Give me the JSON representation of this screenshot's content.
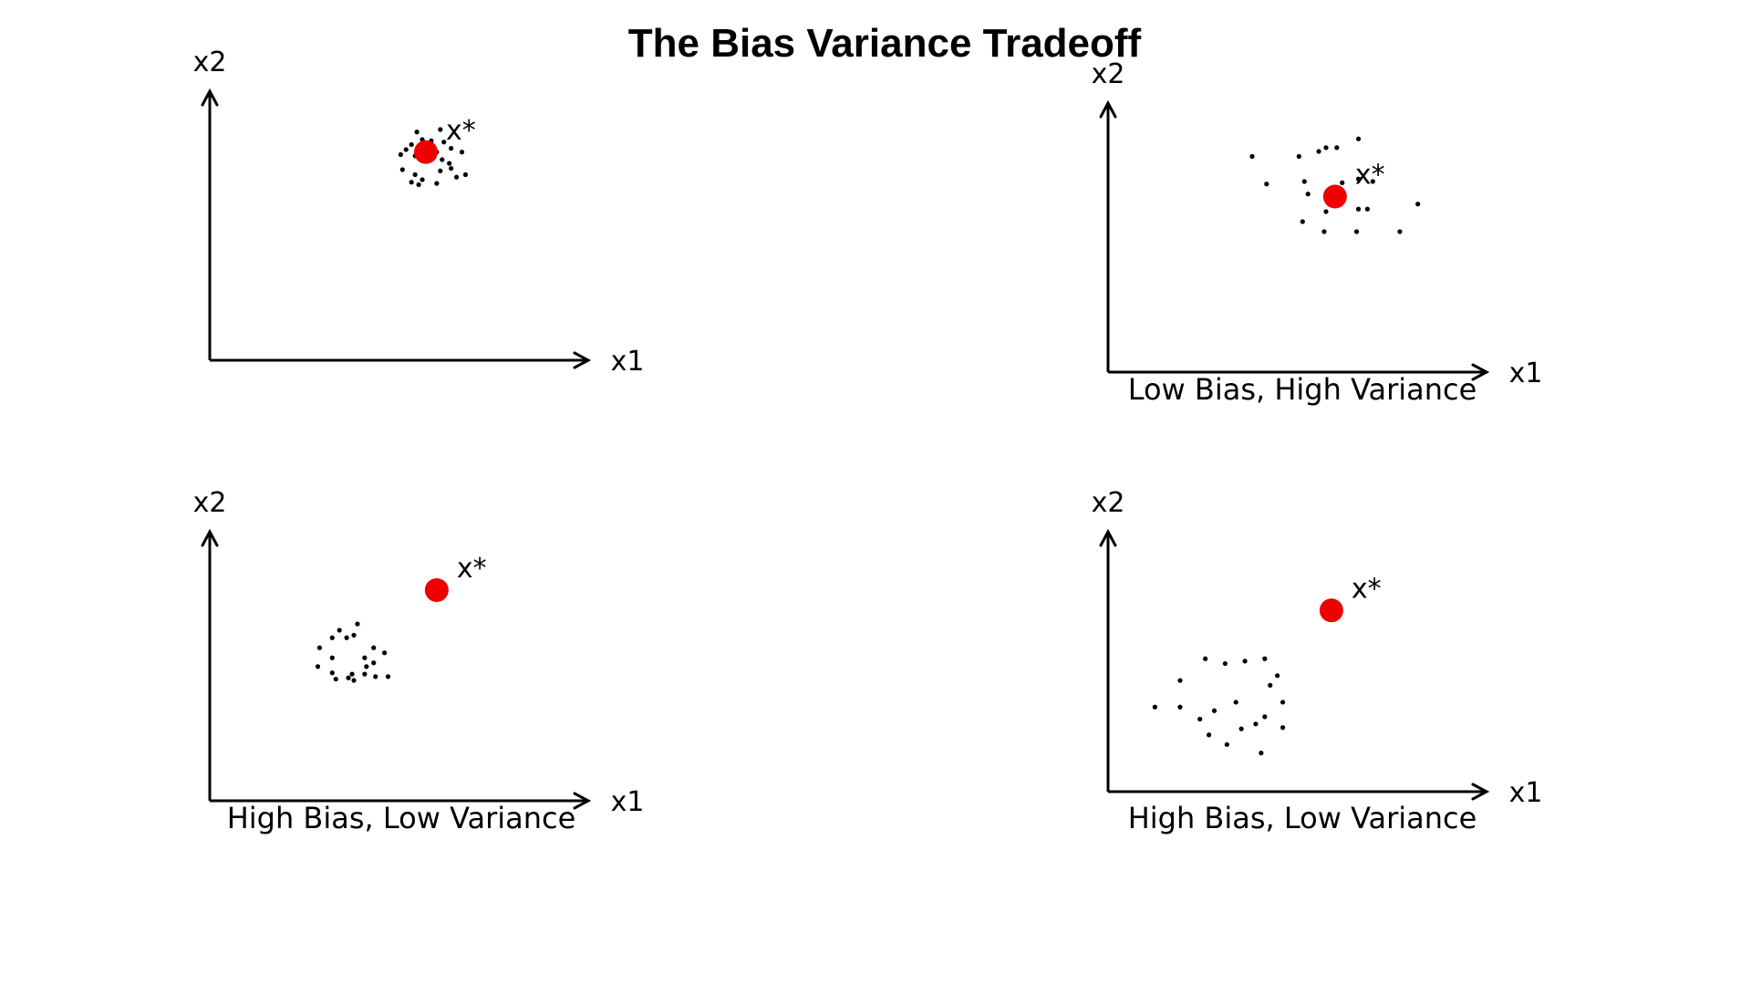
{
  "title": "The Bias Variance Tradeoff",
  "target_color": "#ee0000",
  "point_color": "#000000",
  "panels": [
    {
      "x_label": "x1",
      "y_label": "x2",
      "caption": "",
      "target_label": "x*",
      "target": [
        6.0,
        8.3
      ],
      "points": [
        [
          5.75,
          9.1
        ],
        [
          6.4,
          9.2
        ],
        [
          5.6,
          8.6
        ],
        [
          5.9,
          8.8
        ],
        [
          6.15,
          8.75
        ],
        [
          6.5,
          8.7
        ],
        [
          5.3,
          8.2
        ],
        [
          5.45,
          8.4
        ],
        [
          5.7,
          8.15
        ],
        [
          6.3,
          8.3
        ],
        [
          6.7,
          8.45
        ],
        [
          7.0,
          8.3
        ],
        [
          5.35,
          7.6
        ],
        [
          5.7,
          7.4
        ],
        [
          5.9,
          7.2
        ],
        [
          6.4,
          7.55
        ],
        [
          6.65,
          7.85
        ],
        [
          6.85,
          7.3
        ],
        [
          6.3,
          7.05
        ],
        [
          5.8,
          7.0
        ],
        [
          5.6,
          7.1
        ],
        [
          6.45,
          8.0
        ],
        [
          6.7,
          7.65
        ],
        [
          7.1,
          7.4
        ]
      ]
    },
    {
      "x_label": "x1",
      "y_label": "x2",
      "caption": "Low Bias, High Variance",
      "target_label": "x*",
      "target": [
        6.3,
        7.0
      ],
      "points": [
        [
          6.95,
          9.3
        ],
        [
          5.3,
          8.6
        ],
        [
          5.85,
          8.8
        ],
        [
          6.05,
          8.95
        ],
        [
          6.35,
          8.95
        ],
        [
          4.0,
          8.6
        ],
        [
          4.4,
          7.5
        ],
        [
          5.45,
          7.6
        ],
        [
          5.55,
          7.1
        ],
        [
          6.5,
          7.55
        ],
        [
          6.95,
          7.7
        ],
        [
          7.35,
          7.6
        ],
        [
          6.05,
          6.4
        ],
        [
          6.95,
          6.5
        ],
        [
          7.2,
          6.5
        ],
        [
          8.6,
          6.7
        ],
        [
          5.4,
          6.0
        ],
        [
          6.0,
          5.6
        ],
        [
          6.9,
          5.6
        ],
        [
          8.1,
          5.6
        ]
      ]
    },
    {
      "x_label": "x1",
      "y_label": "x2",
      "caption": "High Bias, Low Variance",
      "target_label": "x*",
      "target": [
        6.3,
        8.4
      ],
      "points": [
        [
          4.1,
          7.05
        ],
        [
          3.6,
          6.8
        ],
        [
          4.0,
          6.6
        ],
        [
          3.4,
          6.5
        ],
        [
          3.8,
          6.5
        ],
        [
          3.05,
          6.1
        ],
        [
          4.55,
          6.1
        ],
        [
          4.85,
          5.9
        ],
        [
          3.4,
          5.7
        ],
        [
          4.3,
          5.7
        ],
        [
          4.55,
          5.5
        ],
        [
          3.0,
          5.35
        ],
        [
          3.4,
          5.1
        ],
        [
          3.95,
          5.05
        ],
        [
          4.35,
          5.35
        ],
        [
          3.5,
          4.85
        ],
        [
          3.85,
          4.9
        ],
        [
          4.3,
          5.05
        ],
        [
          4.6,
          4.95
        ],
        [
          4.95,
          4.95
        ],
        [
          4.0,
          4.8
        ]
      ]
    },
    {
      "x_label": "x1",
      "y_label": "x2",
      "caption": "High Bias, Low Variance",
      "target_label": "x*",
      "target": [
        6.2,
        7.5
      ],
      "points": [
        [
          2.0,
          4.6
        ],
        [
          2.0,
          3.5
        ],
        [
          1.3,
          3.5
        ],
        [
          2.7,
          5.5
        ],
        [
          3.25,
          5.3
        ],
        [
          3.8,
          5.4
        ],
        [
          4.35,
          5.5
        ],
        [
          4.7,
          4.8
        ],
        [
          4.5,
          4.4
        ],
        [
          4.85,
          3.7
        ],
        [
          3.55,
          3.7
        ],
        [
          2.95,
          3.35
        ],
        [
          2.55,
          3.0
        ],
        [
          4.35,
          3.1
        ],
        [
          4.1,
          2.8
        ],
        [
          3.7,
          2.6
        ],
        [
          2.8,
          2.35
        ],
        [
          4.85,
          2.65
        ],
        [
          3.3,
          1.95
        ],
        [
          4.25,
          1.6
        ]
      ]
    }
  ]
}
